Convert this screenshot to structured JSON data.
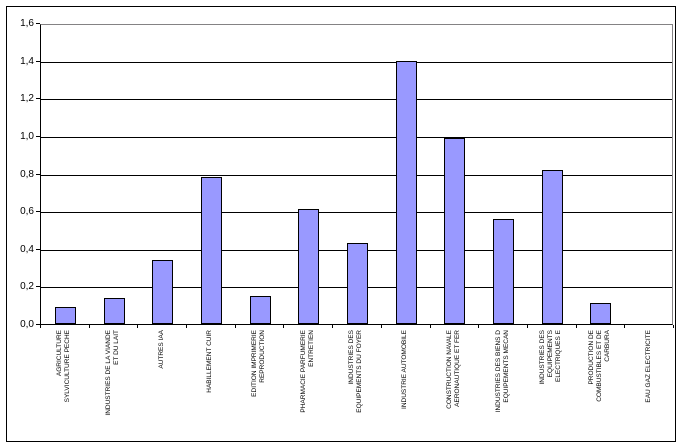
{
  "chart_data": {
    "type": "bar",
    "title": "",
    "xlabel": "",
    "ylabel": "",
    "categories": [
      "AGRICULTURE\nSYLVICULTURE PECHE",
      "INDUSTRIES DE LA VIANDE\nET DU LAIT",
      "AUTRES IAA",
      "HABILLEMENT CUIR",
      "EDITION IMPRIMERIE\nREPRODUCTION",
      "PHARMACIE PARFUMERIE\nENTRETIEN",
      "INDUSTRIES DES\nEQUIPEMENTS DU FOYER",
      "INDUSTRIE AUTOMOBILE",
      "CONSTRUCTION NAVALE\nAERONAUTIQUE ET FER",
      "INDUSTRIES DES BIENS D\nEQUIPEMENTS MECAN",
      "INDUSTRIES DES\nEQUIPEMENTS\nELECTRIQUES E",
      "PRODUCTION DE\nCOMBUSTIBLES ET DE\nCARBURA",
      "EAU GAZ ELECTRICITE"
    ],
    "values": [
      0.08,
      0.13,
      0.33,
      0.77,
      0.14,
      0.6,
      0.42,
      1.39,
      0.98,
      0.55,
      0.81,
      0.1,
      0
    ],
    "ylim": [
      0,
      1.6
    ],
    "ytick_step": 0.2,
    "ytick_labels": [
      "0,0",
      "0,2",
      "0,4",
      "0,6",
      "0,8",
      "1,0",
      "1,2",
      "1,4",
      "1,6"
    ],
    "decimal_separator": ",",
    "grid": true,
    "legend_position": "none",
    "bar_fill_color": "#9999FF",
    "bar_border_color": "#000000",
    "gridline_color": "#000000",
    "plot_border_color": "#848284"
  }
}
